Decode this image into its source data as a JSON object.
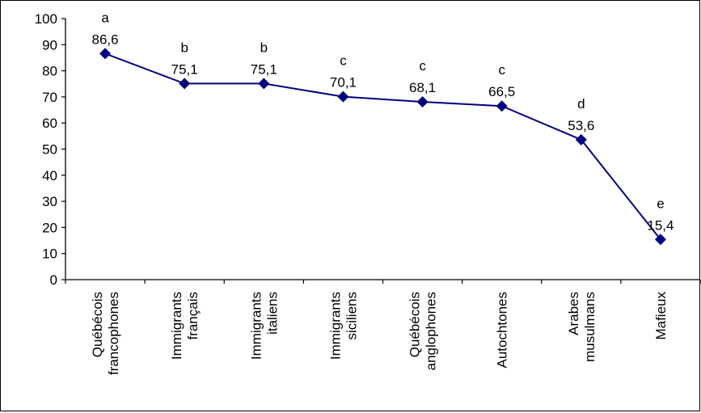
{
  "chart_data": {
    "type": "line",
    "title": "",
    "xlabel": "",
    "ylabel": "",
    "ylim": [
      0,
      100
    ],
    "yticks": [
      0,
      10,
      20,
      30,
      40,
      50,
      60,
      70,
      80,
      90,
      100
    ],
    "grid": false,
    "legend": "none",
    "categories": [
      [
        "Québécois",
        "francophones"
      ],
      [
        "Immigrants",
        "français"
      ],
      [
        "Immigrants",
        "italiens"
      ],
      [
        "Immigrants",
        "siciliens"
      ],
      [
        "Québécois",
        "anglophones"
      ],
      [
        "Autochtones"
      ],
      [
        "Arabes",
        "musulmans"
      ],
      [
        "Mafieux"
      ]
    ],
    "series": [
      {
        "values": [
          86.6,
          75.1,
          75.1,
          70.1,
          68.1,
          66.5,
          53.6,
          15.4
        ],
        "value_labels": [
          "86,6",
          "75,1",
          "75,1",
          "70,1",
          "68,1",
          "66,5",
          "53,6",
          "15,4"
        ],
        "group_letters": [
          "a",
          "b",
          "b",
          "c",
          "c",
          "c",
          "d",
          "e"
        ],
        "color": "#000080"
      }
    ]
  }
}
